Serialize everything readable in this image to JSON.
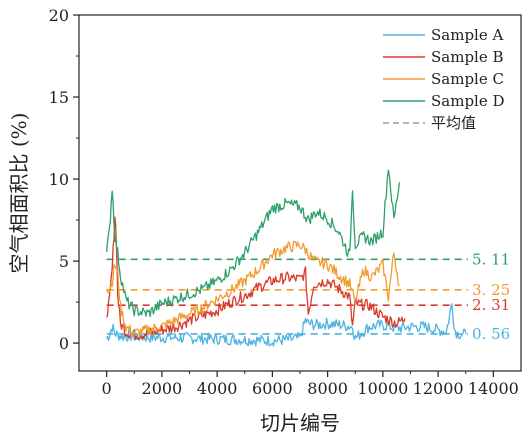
{
  "chart_data": {
    "type": "line",
    "xlabel": "切片编号",
    "ylabel": "空气相面积比 (%)",
    "xlim": [
      -1000,
      15000
    ],
    "ylim": [
      -1.7,
      20
    ],
    "x_ticks": [
      0,
      2000,
      4000,
      6000,
      8000,
      10000,
      12000,
      14000
    ],
    "x_tick_labels": [
      "0",
      "2000",
      "4000",
      "6000",
      "8000",
      "10000",
      "12000",
      "14000"
    ],
    "y_ticks": [
      0,
      5,
      10,
      15,
      20
    ],
    "y_tick_labels": [
      "0",
      "5",
      "10",
      "15",
      "20"
    ],
    "legend_position": "top-right",
    "grid": false,
    "series": [
      {
        "name": "Sample A",
        "color": "#4db3e0",
        "x": [
          0,
          100,
          200,
          300,
          400,
          600,
          800,
          1000,
          1500,
          2000,
          3000,
          4000,
          5000,
          6000,
          6500,
          7000,
          7200,
          7300,
          7600,
          8000,
          8500,
          8900,
          9000,
          9500,
          10000,
          10500,
          11000,
          11500,
          12000,
          12300,
          12500,
          12600,
          12700,
          12900,
          13000
        ],
        "y": [
          0.3,
          0.5,
          1.0,
          0.6,
          0.5,
          0.4,
          0.45,
          0.4,
          0.35,
          0.35,
          0.3,
          0.25,
          0.2,
          0.15,
          0.2,
          0.3,
          1.4,
          1.2,
          1.1,
          1.2,
          1.1,
          1.0,
          0.3,
          1.0,
          1.1,
          0.9,
          1.0,
          1.0,
          0.8,
          0.7,
          2.4,
          0.8,
          0.6,
          0.5,
          0.6
        ]
      },
      {
        "name": "Sample B",
        "color": "#d93a2b",
        "x": [
          0,
          100,
          200,
          300,
          350,
          400,
          500,
          700,
          1000,
          1500,
          2000,
          2500,
          3000,
          3500,
          4000,
          4500,
          5000,
          5500,
          6000,
          6500,
          7000,
          7200,
          7300,
          7500,
          8000,
          8500,
          8800,
          8900,
          9000,
          9500,
          10000,
          10500,
          10800
        ],
        "y": [
          1.8,
          2.5,
          4.5,
          7.8,
          6.5,
          3.0,
          1.2,
          0.7,
          0.5,
          0.6,
          0.8,
          1.0,
          1.4,
          1.7,
          2.0,
          2.5,
          2.9,
          3.4,
          3.8,
          4.0,
          3.9,
          4.3,
          1.8,
          3.6,
          3.8,
          3.2,
          2.8,
          1.0,
          2.4,
          2.3,
          1.6,
          1.2,
          1.5
        ]
      },
      {
        "name": "Sample C",
        "color": "#f39a30",
        "x": [
          0,
          100,
          200,
          300,
          400,
          500,
          700,
          1000,
          1500,
          2000,
          2500,
          3000,
          3500,
          4000,
          4500,
          5000,
          5500,
          6000,
          6500,
          7000,
          7200,
          7500,
          8000,
          8500,
          8800,
          9000,
          9300,
          9600,
          10000,
          10200,
          10400,
          10600
        ],
        "y": [
          3.5,
          3.2,
          3.8,
          4.8,
          4.3,
          2.2,
          1.0,
          0.6,
          0.8,
          1.0,
          1.4,
          1.8,
          2.2,
          2.7,
          3.2,
          3.8,
          4.5,
          5.4,
          5.8,
          6.0,
          5.7,
          5.0,
          4.8,
          4.0,
          3.6,
          2.5,
          4.5,
          4.0,
          4.8,
          2.8,
          5.5,
          3.5
        ]
      },
      {
        "name": "Sample D",
        "color": "#2ea06a",
        "x": [
          0,
          100,
          200,
          300,
          400,
          500,
          700,
          1000,
          1500,
          2000,
          2500,
          3000,
          3500,
          4000,
          4500,
          5000,
          5500,
          6000,
          6500,
          7000,
          7300,
          7600,
          8000,
          8400,
          8800,
          8900,
          9000,
          9300,
          9600,
          10000,
          10200,
          10400,
          10600
        ],
        "y": [
          5.5,
          6.8,
          9.5,
          6.5,
          5.5,
          4.2,
          2.6,
          2.0,
          1.8,
          2.4,
          2.7,
          3.0,
          3.3,
          3.8,
          4.5,
          5.5,
          6.8,
          8.2,
          8.5,
          8.3,
          7.5,
          8.0,
          7.6,
          6.8,
          5.3,
          9.5,
          6.0,
          6.5,
          6.2,
          6.8,
          10.8,
          7.5,
          9.8
        ]
      }
    ],
    "mean_lines": [
      {
        "label": "5. 11",
        "y": 5.11,
        "color": "#2ea06a"
      },
      {
        "label": "3. 25",
        "y": 3.25,
        "color": "#f39a30"
      },
      {
        "label": "2. 31",
        "y": 2.31,
        "color": "#d93a2b"
      },
      {
        "label": "0. 56",
        "y": 0.56,
        "color": "#4db3e0"
      }
    ],
    "mean_legend": {
      "name": "平均值",
      "color": "#999999"
    }
  }
}
